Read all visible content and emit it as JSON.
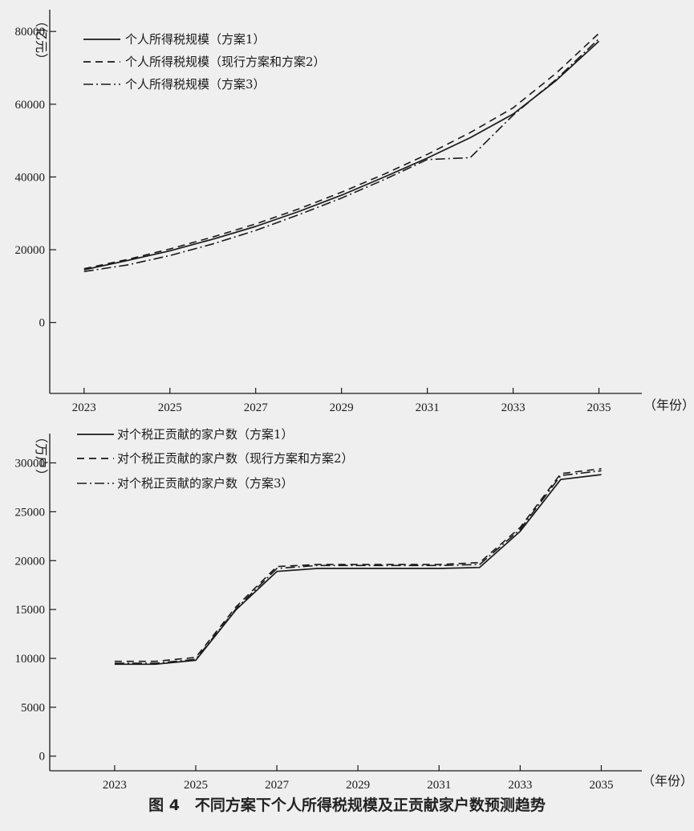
{
  "caption": "图 4　不同方案下个人所得税规模及正贡献家户数预测趋势",
  "chart_data": [
    {
      "type": "line",
      "ylabel": "（亿元）",
      "xlabel": "（年份）",
      "x_tick_labels": [
        "2023",
        "2025",
        "2027",
        "2029",
        "2031",
        "2033",
        "2035"
      ],
      "y_tick_labels": [
        "0",
        "20000",
        "40000",
        "60000",
        "80000"
      ],
      "xlim": [
        2022.2,
        2036
      ],
      "ylim": [
        -19500,
        86000
      ],
      "x": [
        2023,
        2024,
        2025,
        2026,
        2027,
        2028,
        2029,
        2030,
        2031,
        2032,
        2033,
        2034,
        2035
      ],
      "series": [
        {
          "name": "个人所得税规模（方案1）",
          "style": "solid",
          "values": [
            14500,
            17000,
            19700,
            22900,
            26400,
            30500,
            35000,
            40000,
            45200,
            50800,
            57300,
            66500,
            77300
          ]
        },
        {
          "name": "个人所得税规模（现行方案和方案2）",
          "style": "dashed",
          "values": [
            14800,
            17300,
            20200,
            23500,
            27100,
            31200,
            35800,
            40800,
            46200,
            52200,
            59000,
            68500,
            79500
          ]
        },
        {
          "name": "个人所得税规模（方案3）",
          "style": "dashdot",
          "values": [
            14000,
            15800,
            18400,
            21600,
            25300,
            29600,
            34200,
            39300,
            44800,
            45300,
            57000,
            66800,
            78000
          ]
        }
      ]
    },
    {
      "type": "line",
      "ylabel": "（万户）",
      "xlabel": "（年份）",
      "x_tick_labels": [
        "2023",
        "2025",
        "2027",
        "2029",
        "2031",
        "2033",
        "2035"
      ],
      "y_tick_labels": [
        "0",
        "5000",
        "10000",
        "15000",
        "20000",
        "25000",
        "30000"
      ],
      "xlim": [
        2021.4,
        2036
      ],
      "ylim": [
        -1500,
        33000
      ],
      "x": [
        2023,
        2024,
        2025,
        2026,
        2027,
        2028,
        2029,
        2030,
        2031,
        2032,
        2033,
        2034,
        2035
      ],
      "series": [
        {
          "name": "对个税正贡献的家户数（方案1）",
          "style": "solid",
          "values": [
            9400,
            9400,
            9800,
            15000,
            18900,
            19200,
            19200,
            19200,
            19200,
            19300,
            23000,
            28300,
            28800
          ]
        },
        {
          "name": "对个税正贡献的家户数（现行方案和方案2）",
          "style": "dashed",
          "values": [
            9700,
            9700,
            10100,
            15300,
            19400,
            19600,
            19600,
            19600,
            19600,
            19800,
            23400,
            28900,
            29400
          ]
        },
        {
          "name": "对个税正贡献的家户数（方案3）",
          "style": "dashdot",
          "values": [
            9500,
            9500,
            9900,
            15100,
            19200,
            19500,
            19500,
            19500,
            19500,
            19600,
            23200,
            28700,
            29200
          ]
        }
      ]
    }
  ]
}
